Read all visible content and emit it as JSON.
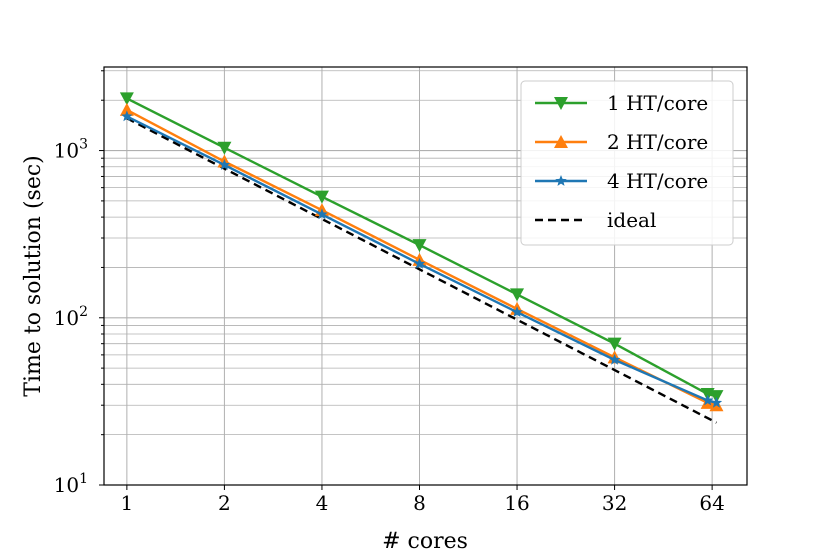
{
  "chart_data": {
    "type": "line",
    "title": "",
    "xlabel": "# cores",
    "ylabel": "Time to solution (sec)",
    "xscale": "log2",
    "yscale": "log10",
    "xlim": [
      0.85,
      82
    ],
    "ylim": [
      10,
      3160
    ],
    "x_ticks": [
      {
        "value": 1,
        "label": "1"
      },
      {
        "value": 2,
        "label": "2"
      },
      {
        "value": 4,
        "label": "4"
      },
      {
        "value": 8,
        "label": "8"
      },
      {
        "value": 16,
        "label": "16"
      },
      {
        "value": 32,
        "label": "32"
      },
      {
        "value": 64,
        "label": "64"
      }
    ],
    "y_ticks": [
      {
        "value": 10,
        "base": "10",
        "exp": "1"
      },
      {
        "value": 100,
        "base": "10",
        "exp": "2"
      },
      {
        "value": 1000,
        "base": "10",
        "exp": "3"
      }
    ],
    "grid": true,
    "legend_position": "top-right",
    "series": [
      {
        "name": "1 HT/core",
        "color": "#2ca02c",
        "marker": "triangle-down",
        "dashed": false,
        "x": [
          1,
          2,
          4,
          8,
          16,
          32,
          62,
          66
        ],
        "y": [
          2050,
          1040,
          530,
          272,
          138,
          70,
          35,
          34
        ]
      },
      {
        "name": "2 HT/core",
        "color": "#ff7f0e",
        "marker": "triangle-up",
        "dashed": false,
        "x": [
          1,
          2,
          4,
          8,
          16,
          32,
          62,
          66
        ],
        "y": [
          1750,
          860,
          440,
          222,
          113,
          58,
          31,
          30
        ]
      },
      {
        "name": "4 HT/core",
        "color": "#1f77b4",
        "marker": "star",
        "dashed": false,
        "x": [
          1,
          2,
          4,
          8,
          16,
          32,
          62,
          66
        ],
        "y": [
          1600,
          820,
          415,
          210,
          108,
          56,
          32,
          31
        ]
      },
      {
        "name": "ideal",
        "color": "#000000",
        "marker": "none",
        "dashed": true,
        "x": [
          1,
          66
        ],
        "y": [
          1560,
          23.6
        ]
      }
    ]
  }
}
